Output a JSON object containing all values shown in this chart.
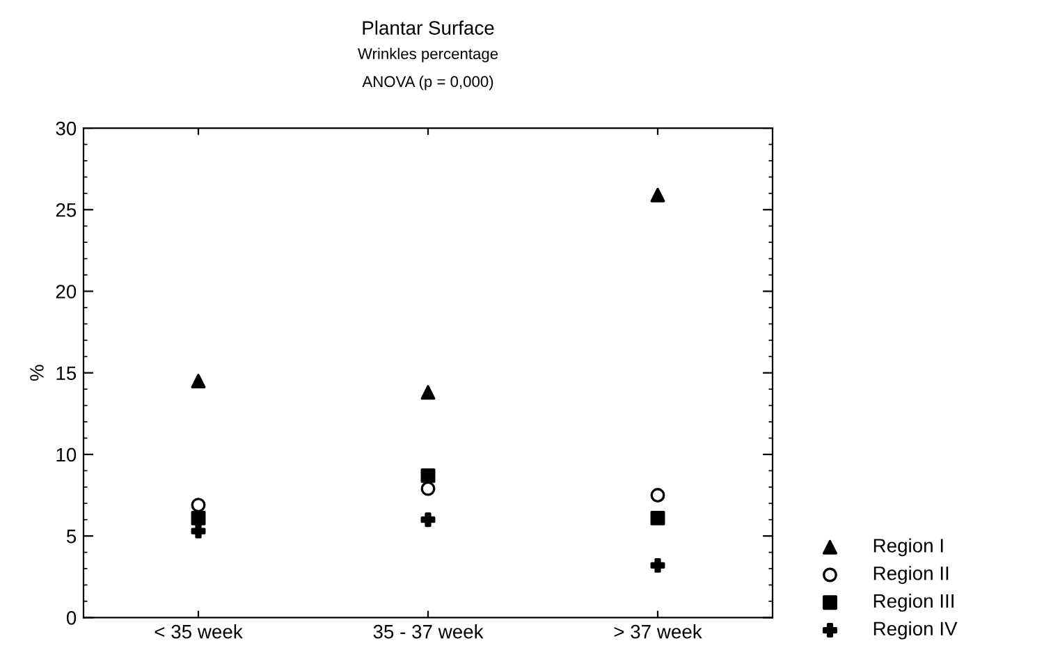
{
  "chart_data": {
    "type": "scatter",
    "title": "Plantar Surface",
    "subtitle": "Wrinkles percentage\nANOVA (p = 0,000)",
    "ylabel": "%",
    "categories": [
      "< 35 week",
      "35 - 37 week",
      "> 37 week"
    ],
    "series": [
      {
        "name": "Region I",
        "color": "#000000",
        "marker": "triangle",
        "values": [
          14.5,
          13.8,
          25.9
        ]
      },
      {
        "name": "Region II",
        "color": "#000000",
        "marker": "circle",
        "values": [
          6.9,
          7.9,
          7.5
        ]
      },
      {
        "name": "Region III",
        "color": "#000000",
        "marker": "square",
        "values": [
          6.1,
          8.7,
          6.1
        ]
      },
      {
        "name": "Region IV",
        "color": "#000000",
        "marker": "cross",
        "values": [
          5.3,
          6.0,
          3.2
        ]
      }
    ],
    "ylim": [
      0,
      30
    ],
    "yticks": [
      0,
      5,
      10,
      15,
      20,
      25,
      30
    ],
    "grid": false,
    "legend": "bottom right"
  }
}
